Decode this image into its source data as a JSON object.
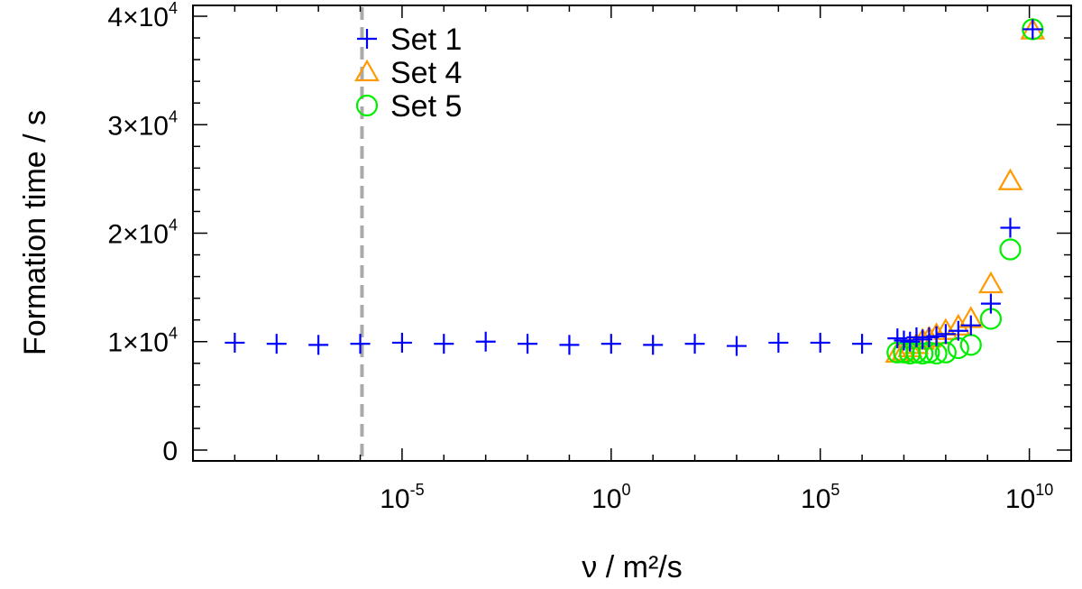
{
  "chart_data": {
    "type": "scatter",
    "title": "",
    "xlabel": "ν / m²/s",
    "ylabel": "Formation time / s",
    "xscale": "log",
    "xlim": [
      1e-10,
      100000000000.0
    ],
    "ylim": [
      -1000,
      41000
    ],
    "grid": false,
    "legend_position": "top-left",
    "x_ticks": [
      {
        "value": 1e-05,
        "mantissa": "10",
        "exp": "-5"
      },
      {
        "value": 1,
        "mantissa": "10",
        "exp": "0"
      },
      {
        "value": 100000.0,
        "mantissa": "10",
        "exp": "5"
      },
      {
        "value": 10000000000.0,
        "mantissa": "10",
        "exp": "10"
      }
    ],
    "y_ticks": [
      {
        "value": 0,
        "text": "0",
        "exp": ""
      },
      {
        "value": 10000,
        "text": "1×10",
        "exp": "4"
      },
      {
        "value": 20000,
        "text": "2×10",
        "exp": "4"
      },
      {
        "value": 30000,
        "text": "3×10",
        "exp": "4"
      },
      {
        "value": 40000,
        "text": "4×10",
        "exp": "4"
      }
    ],
    "vline": {
      "x": 1.1e-06,
      "color": "#aaaaaa",
      "style": "dashed"
    },
    "series": [
      {
        "name": "Set 1",
        "marker": "plus",
        "color": "#0000ff",
        "points": [
          [
            1e-09,
            9900
          ],
          [
            1e-08,
            9800
          ],
          [
            1e-07,
            9700
          ],
          [
            1e-06,
            9800
          ],
          [
            1e-05,
            9900
          ],
          [
            0.0001,
            9800
          ],
          [
            0.001,
            10000
          ],
          [
            0.01,
            9800
          ],
          [
            0.1,
            9700
          ],
          [
            1,
            9800
          ],
          [
            10,
            9700
          ],
          [
            100,
            9800
          ],
          [
            1000,
            9600
          ],
          [
            10000.0,
            9900
          ],
          [
            100000.0,
            9900
          ],
          [
            1000000.0,
            9800
          ],
          [
            7000000.0,
            10300
          ],
          [
            10000000.0,
            10100
          ],
          [
            14000000.0,
            10000
          ],
          [
            20000000.0,
            10400
          ],
          [
            28000000.0,
            10200
          ],
          [
            40000000.0,
            10400
          ],
          [
            60000000.0,
            10500
          ],
          [
            100000000.0,
            10700
          ],
          [
            200000000.0,
            11000
          ],
          [
            400000000.0,
            11500
          ],
          [
            1200000000.0,
            13500
          ],
          [
            3500000000.0,
            20500
          ],
          [
            12000000000.0,
            38800
          ]
        ]
      },
      {
        "name": "Set 4",
        "marker": "triangle",
        "color": "#ff9900",
        "points": [
          [
            7000000.0,
            8900
          ],
          [
            10000000.0,
            9100
          ],
          [
            14000000.0,
            9400
          ],
          [
            20000000.0,
            9700
          ],
          [
            28000000.0,
            10100
          ],
          [
            40000000.0,
            10300
          ],
          [
            60000000.0,
            10600
          ],
          [
            100000000.0,
            11000
          ],
          [
            200000000.0,
            11400
          ],
          [
            400000000.0,
            12100
          ],
          [
            1200000000.0,
            15300
          ],
          [
            3500000000.0,
            24800
          ],
          [
            12000000000.0,
            38700
          ]
        ]
      },
      {
        "name": "Set 5",
        "marker": "circle",
        "color": "#00ee00",
        "points": [
          [
            7000000.0,
            9000
          ],
          [
            10000000.0,
            9000
          ],
          [
            14000000.0,
            8900
          ],
          [
            20000000.0,
            9000
          ],
          [
            28000000.0,
            8900
          ],
          [
            40000000.0,
            9000
          ],
          [
            60000000.0,
            8900
          ],
          [
            100000000.0,
            9000
          ],
          [
            200000000.0,
            9400
          ],
          [
            400000000.0,
            9700
          ],
          [
            1200000000.0,
            12100
          ],
          [
            3500000000.0,
            18500
          ],
          [
            12000000000.0,
            38800
          ]
        ]
      }
    ]
  }
}
